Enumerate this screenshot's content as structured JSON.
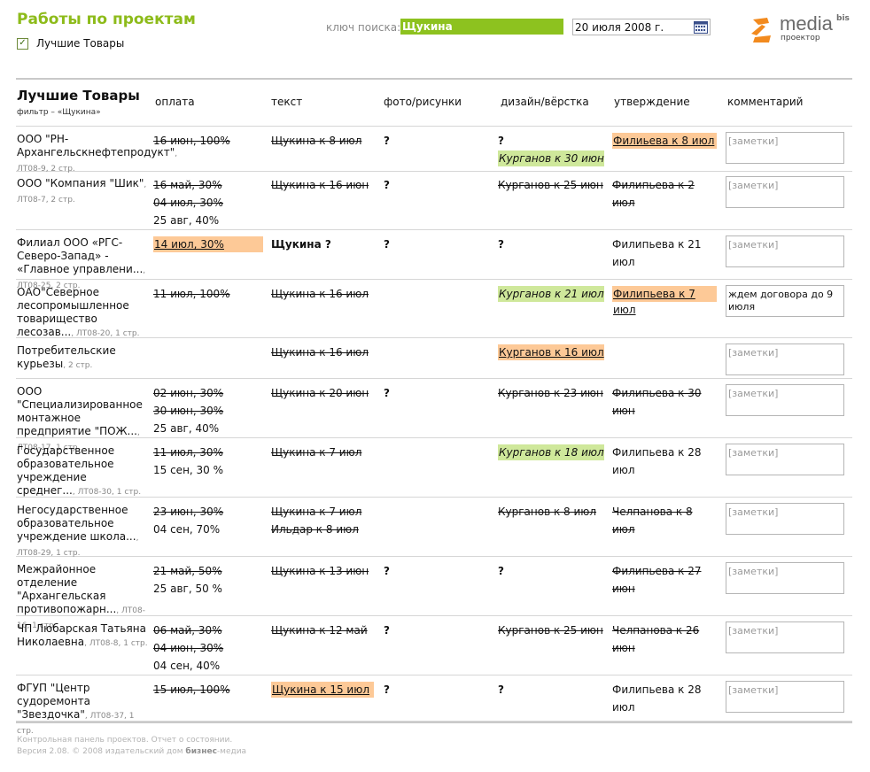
{
  "header": {
    "title": "Работы по проектам",
    "checkbox_label": "Лучшие Товары",
    "search_label": "ключ поиска:",
    "search_value": "Щукина",
    "date_value": "20 июля 2008 г.",
    "logo_main": "media",
    "logo_sup": "bis",
    "logo_sub": "проектор"
  },
  "table": {
    "project_name": "Лучшие Товары",
    "filter_text": "фильтр – «Щукина»",
    "columns": [
      "оплата",
      "текст",
      "фото/рисунки",
      "дизайн/вёрстка",
      "утверждение",
      "комментарий"
    ],
    "rows": [
      {
        "client": "ООО \"РН-Архангельскнефтепродукт\"",
        "meta": ", ЛТ08-9, 2 стр.",
        "pay": [
          {
            "t": "16 июн, 100%",
            "s": "strike"
          }
        ],
        "text": [
          {
            "t": "Щукина к 8 июл",
            "s": "strike"
          }
        ],
        "photo": [
          {
            "t": "?",
            "s": "q"
          }
        ],
        "design": [
          {
            "t": "?",
            "s": "q"
          },
          {
            "t": "Курганов к 30 июн",
            "s": "green"
          }
        ],
        "appr": [
          {
            "t": "Филиьева к 8 июл",
            "s": "orange"
          }
        ],
        "comment": "[заметки]",
        "comment_filled": false
      },
      {
        "client": "ООО \"Компания \"Шик\"",
        "meta": ", ЛТ08-7, 2 стр.",
        "pay": [
          {
            "t": "16 май, 30%",
            "s": "strike"
          },
          {
            "t": "04 июл, 30%",
            "s": "strike"
          },
          {
            "t": "25 авг, 40%",
            "s": ""
          }
        ],
        "text": [
          {
            "t": "Щукина к 16 июн",
            "s": "strike"
          }
        ],
        "photo": [
          {
            "t": "?",
            "s": "q"
          }
        ],
        "design": [
          {
            "t": "Курганов к 25 июн",
            "s": "strike"
          }
        ],
        "appr": [
          {
            "t": "Филипьева к 2 июл",
            "s": "strike"
          }
        ],
        "comment": "[заметки]",
        "comment_filled": false
      },
      {
        "client": "Филиал ООО «РГС-Северо-Запад» - «Главное управлени...",
        "meta": ", ЛТ08-25, 2 стр.",
        "pay": [
          {
            "t": "14 июл, 30%",
            "s": "orange"
          }
        ],
        "text": [
          {
            "t": "Щукина ?",
            "s": "q"
          }
        ],
        "photo": [
          {
            "t": "?",
            "s": "q"
          }
        ],
        "design": [
          {
            "t": "?",
            "s": "q"
          }
        ],
        "appr": [
          {
            "t": "Филипьева к 21 июл",
            "s": ""
          }
        ],
        "comment": "[заметки]",
        "comment_filled": false
      },
      {
        "client": "ОАО\"Северное лесопромышленное товарищество лесозав...",
        "meta": ", ЛТ08-20, 1 стр.",
        "pay": [
          {
            "t": "11 июл, 100%",
            "s": "strike"
          }
        ],
        "text": [
          {
            "t": "Щукина к 16 июл",
            "s": "strike"
          }
        ],
        "photo": [],
        "design": [
          {
            "t": "Курганов к 21 июл",
            "s": "green"
          }
        ],
        "appr": [
          {
            "t": "Филипьева к 7 июл",
            "s": "orange"
          }
        ],
        "comment": "ждем договора до 9 июля",
        "comment_filled": true
      },
      {
        "client": "Потребительские курьезы",
        "meta": ", 2 стр.",
        "pay": [],
        "text": [
          {
            "t": "Щукина к 16 июл",
            "s": "strike"
          }
        ],
        "photo": [],
        "design": [
          {
            "t": "Курганов к 16 июл",
            "s": "orange"
          }
        ],
        "appr": [],
        "comment": "[заметки]",
        "comment_filled": false
      },
      {
        "client": "ООО \"Специализированное монтажное предприятие \"ПОЖ...",
        "meta": ", ЛТ08-17, 1 стр.",
        "pay": [
          {
            "t": "02 июн, 30%",
            "s": "strike"
          },
          {
            "t": "30 июн, 30%",
            "s": "strike"
          },
          {
            "t": "25 авг, 40%",
            "s": ""
          }
        ],
        "text": [
          {
            "t": "Щукина к 20 июн",
            "s": "strike"
          }
        ],
        "photo": [
          {
            "t": "?",
            "s": "q"
          }
        ],
        "design": [
          {
            "t": "Курганов к 23 июн",
            "s": "strike"
          }
        ],
        "appr": [
          {
            "t": "Филипьева к 30 июн",
            "s": "strike"
          }
        ],
        "comment": "[заметки]",
        "comment_filled": false
      },
      {
        "client": "Государственное образовательное учреждение среднег...",
        "meta": ", ЛТ08-30, 1 стр.",
        "pay": [
          {
            "t": "11 июл, 30%",
            "s": "strike"
          },
          {
            "t": "15 сен, 30 %",
            "s": ""
          }
        ],
        "text": [
          {
            "t": "Щукина к 7 июл",
            "s": "strike"
          }
        ],
        "photo": [],
        "design": [
          {
            "t": "Курганов к 18 июл",
            "s": "green"
          }
        ],
        "appr": [
          {
            "t": "Филипьева к 28 июл",
            "s": ""
          }
        ],
        "comment": "[заметки]",
        "comment_filled": false
      },
      {
        "client": "Негосударственное образовательное учреждение школа...",
        "meta": ", ЛТ08-29, 1 стр.",
        "pay": [
          {
            "t": "23 июн, 30%",
            "s": "strike"
          },
          {
            "t": "04 сен, 70%",
            "s": ""
          }
        ],
        "text": [
          {
            "t": "Щукина к 7 июл",
            "s": "strike"
          },
          {
            "t": "Ильдар к 8 июл",
            "s": "strike"
          }
        ],
        "photo": [],
        "design": [
          {
            "t": "Курганов к 8 июл",
            "s": "strike"
          }
        ],
        "appr": [
          {
            "t": "Челпанова к 8 июл",
            "s": "strike"
          }
        ],
        "comment": "[заметки]",
        "comment_filled": false
      },
      {
        "client": "Межрайонное отделение \"Архангельская противопожарн...",
        "meta": ", ЛТ08-16, 1 стр.",
        "pay": [
          {
            "t": "21 май, 50%",
            "s": "strike"
          },
          {
            "t": "25 авг, 50 %",
            "s": ""
          }
        ],
        "text": [
          {
            "t": "Щукина к 13 июн",
            "s": "strike"
          }
        ],
        "photo": [
          {
            "t": "?",
            "s": "q"
          }
        ],
        "design": [
          {
            "t": "?",
            "s": "q"
          }
        ],
        "appr": [
          {
            "t": "Филипьева к 27 июн",
            "s": "strike"
          }
        ],
        "comment": "[заметки]",
        "comment_filled": false
      },
      {
        "client": "ЧП Любарская Татьяна Николаевна",
        "meta": ", ЛТ08-8, 1 стр.",
        "pay": [
          {
            "t": "06 май, 30%",
            "s": "strike"
          },
          {
            "t": "04 июн, 30%",
            "s": "strike"
          },
          {
            "t": "04 сен, 40%",
            "s": ""
          }
        ],
        "text": [
          {
            "t": "Щукина к 12 май",
            "s": "strike"
          }
        ],
        "photo": [
          {
            "t": "?",
            "s": "q"
          }
        ],
        "design": [
          {
            "t": "Курганов к 25 июн",
            "s": "strike"
          }
        ],
        "appr": [
          {
            "t": "Челпанова к 26 июн",
            "s": "strike"
          }
        ],
        "comment": "[заметки]",
        "comment_filled": false
      },
      {
        "client": "ФГУП \"Центр судоремонта \"Звездочка\"",
        "meta": ", ЛТ08-37, 1 стр.",
        "pay": [
          {
            "t": "15 июл, 100%",
            "s": "strike"
          }
        ],
        "text": [
          {
            "t": "Щукина к 15 июл",
            "s": "orange"
          }
        ],
        "photo": [
          {
            "t": "?",
            "s": "q"
          }
        ],
        "design": [
          {
            "t": "?",
            "s": "q"
          }
        ],
        "appr": [
          {
            "t": "Филипьева к 28 июл",
            "s": ""
          }
        ],
        "comment": "[заметки]",
        "comment_filled": false
      }
    ]
  },
  "footer": {
    "line1": "Контрольная панель проектов. Отчет о состоянии.",
    "line2_prefix": "Версия 2.08. © 2008 издательский дом ",
    "line2_brand": "бизнес",
    "line2_suffix": "-медиа"
  },
  "colors": {
    "accent_green": "#8dc21f",
    "title_green": "#8dbb1a",
    "highlight_orange": "#fdc997",
    "highlight_green": "#cfe89b"
  }
}
